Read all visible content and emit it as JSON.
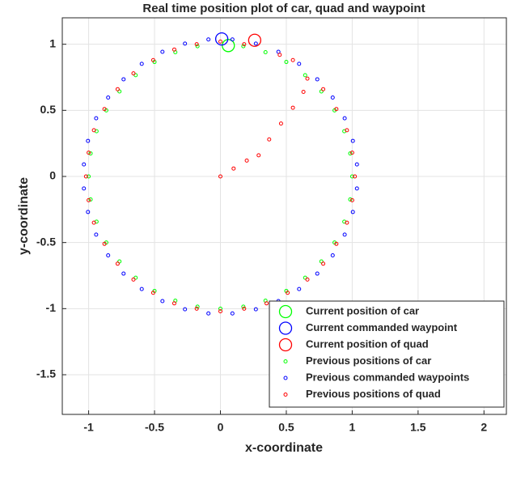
{
  "chart_data": {
    "type": "scatter",
    "title": "Real time position plot of car, quad and waypoint",
    "x_label": "x-coordinate",
    "y_label": "y-coordinate",
    "xlim": [
      -1.2,
      2.17
    ],
    "ylim": [
      -1.8,
      1.2
    ],
    "xticks": [
      -1,
      -0.5,
      0,
      0.5,
      1,
      1.5,
      2
    ],
    "yticks": [
      -1.5,
      -1,
      -0.5,
      0,
      0.5,
      1
    ],
    "grid": true,
    "legend": "southeast",
    "series": [
      {
        "name": "Current position of car",
        "color": "#00ff00",
        "marker": "large",
        "x": [
          0.06
        ],
        "y": [
          0.99
        ]
      },
      {
        "name": "Current commanded waypoint",
        "color": "#0000ff",
        "marker": "large",
        "x": [
          0.01
        ],
        "y": [
          1.04
        ]
      },
      {
        "name": "Current position of quad",
        "color": "#ff0000",
        "marker": "large",
        "x": [
          0.26
        ],
        "y": [
          1.03
        ]
      },
      {
        "name": "Previous positions of car",
        "color": "#00ff00",
        "marker": "small",
        "x": [
          1,
          0.985,
          0.94,
          0.866,
          0.766,
          0.643,
          0.5,
          0.342,
          0.174,
          -0.174,
          -0.342,
          -0.5,
          -0.643,
          -0.766,
          -0.866,
          -0.94,
          -0.985,
          -1,
          -0.985,
          -0.94,
          -0.866,
          -0.766,
          -0.643,
          -0.5,
          -0.342,
          -0.174,
          0,
          0.174,
          0.342,
          0.5,
          0.643,
          0.766,
          0.866,
          0.94,
          0.985
        ],
        "y": [
          0,
          0.174,
          0.342,
          0.5,
          0.643,
          0.766,
          0.866,
          0.94,
          0.985,
          0.985,
          0.94,
          0.866,
          0.766,
          0.643,
          0.5,
          0.342,
          0.174,
          0,
          -0.174,
          -0.342,
          -0.5,
          -0.643,
          -0.766,
          -0.866,
          -0.94,
          -0.985,
          -1,
          -0.985,
          -0.94,
          -0.866,
          -0.766,
          -0.643,
          -0.5,
          -0.342,
          -0.174
        ]
      },
      {
        "name": "Previous commanded waypoints",
        "color": "#0000ff",
        "marker": "small",
        "x": [
          1.036,
          1.005,
          0.943,
          0.852,
          0.735,
          0.597,
          0.44,
          0.269,
          0.091,
          -0.091,
          -0.269,
          -0.44,
          -0.597,
          -0.735,
          -0.852,
          -0.943,
          -1.005,
          -1.036,
          -1.036,
          -1.005,
          -0.943,
          -0.852,
          -0.735,
          -0.597,
          -0.44,
          -0.269,
          -0.091,
          0.091,
          0.269,
          0.44,
          0.597,
          0.735,
          0.852,
          0.943,
          1.005,
          1.036
        ],
        "y": [
          0.091,
          0.269,
          0.44,
          0.597,
          0.735,
          0.852,
          0.943,
          1.005,
          1.036,
          1.036,
          1.005,
          0.943,
          0.852,
          0.735,
          0.597,
          0.44,
          0.269,
          0.091,
          -0.091,
          -0.269,
          -0.44,
          -0.597,
          -0.735,
          -0.852,
          -0.943,
          -1.005,
          -1.036,
          -1.036,
          -1.005,
          -0.943,
          -0.852,
          -0.735,
          -0.597,
          -0.44,
          -0.269,
          -0.091
        ]
      },
      {
        "name": "Previous positions of quad",
        "color": "#ff0000",
        "marker": "small",
        "x": [
          0,
          0.1,
          0.2,
          0.29,
          0.37,
          0.46,
          0.55,
          0.63,
          0.66,
          0.78,
          0.88,
          0.96,
          1.0,
          1.02,
          1.0,
          0.96,
          0.88,
          0.78,
          0.66,
          0.51,
          0.35,
          0.18,
          0,
          -0.18,
          -0.35,
          -0.51,
          -0.66,
          -0.78,
          -0.88,
          -0.96,
          -1.0,
          -1.02,
          -1.0,
          -0.96,
          -0.88,
          -0.78,
          -0.66,
          -0.51,
          -0.35,
          -0.18,
          0,
          0.18,
          0.45,
          0.55
        ],
        "y": [
          0,
          0.06,
          0.12,
          0.16,
          0.28,
          0.4,
          0.52,
          0.64,
          0.74,
          0.66,
          0.51,
          0.35,
          0.18,
          0,
          -0.18,
          -0.35,
          -0.51,
          -0.66,
          -0.78,
          -0.88,
          -0.96,
          -1.0,
          -1.02,
          -1.0,
          -0.96,
          -0.88,
          -0.78,
          -0.66,
          -0.51,
          -0.35,
          -0.18,
          0,
          0.18,
          0.35,
          0.51,
          0.66,
          0.78,
          0.88,
          0.96,
          1.0,
          1.02,
          1.0,
          0.92,
          0.88
        ]
      }
    ]
  }
}
